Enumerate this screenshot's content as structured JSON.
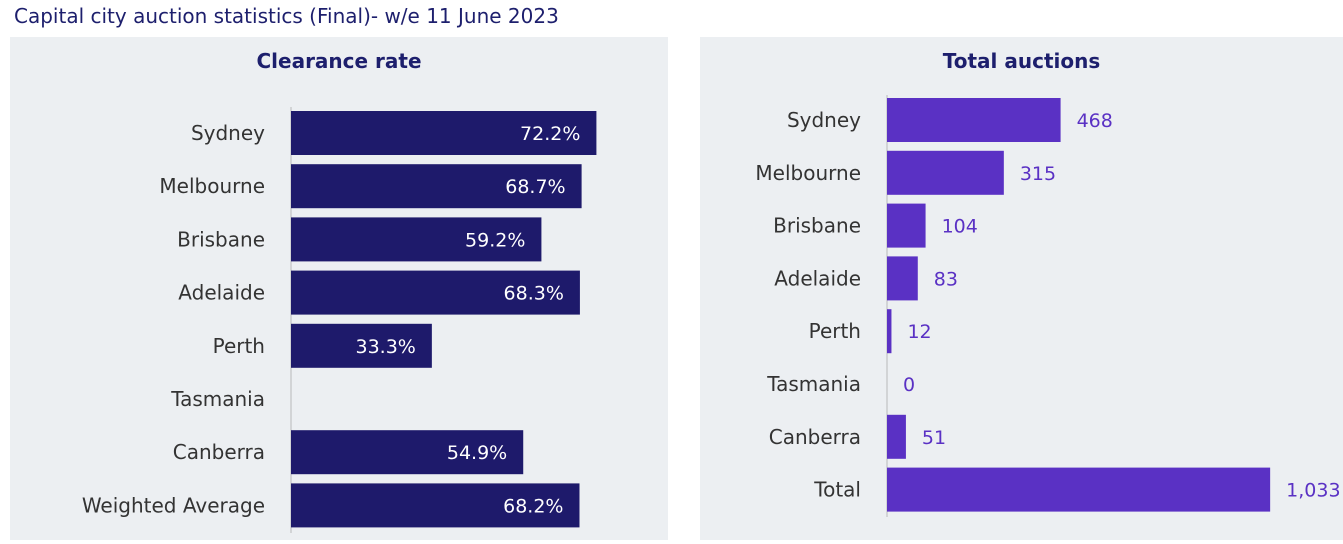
{
  "page": {
    "title": "Capital city auction statistics (Final)- w/e 11 June 2023"
  },
  "chart_data": [
    {
      "type": "bar",
      "orientation": "horizontal",
      "title": "Clearance rate",
      "categories": [
        "Sydney",
        "Melbourne",
        "Brisbane",
        "Adelaide",
        "Perth",
        "Tasmania",
        "Canberra",
        "Weighted Average"
      ],
      "values": [
        72.2,
        68.7,
        59.2,
        68.3,
        33.3,
        null,
        54.9,
        68.2
      ],
      "labels": [
        "72.2%",
        "68.7%",
        "59.2%",
        "68.3%",
        "33.3%",
        "",
        "54.9%",
        "68.2%"
      ],
      "xlim": [
        0,
        100
      ],
      "grid": false,
      "color": "#1e1a6b",
      "label_color": "#ffffff"
    },
    {
      "type": "bar",
      "orientation": "horizontal",
      "title": "Total auctions",
      "categories": [
        "Sydney",
        "Melbourne",
        "Brisbane",
        "Adelaide",
        "Perth",
        "Tasmania",
        "Canberra",
        "Total"
      ],
      "values": [
        468,
        315,
        104,
        83,
        12,
        0,
        51,
        1033
      ],
      "labels": [
        "468",
        "315",
        "104",
        "83",
        "12",
        "0",
        "51",
        "1,033"
      ],
      "xlim": [
        0,
        1100
      ],
      "grid": false,
      "color": "#5a31c4",
      "label_color": "#5a31c4"
    }
  ]
}
